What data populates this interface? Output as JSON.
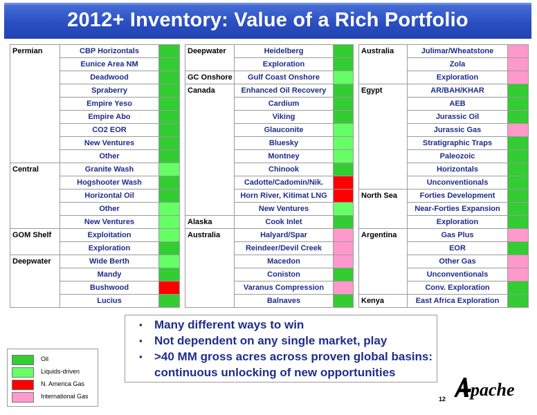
{
  "title": "2012+ Inventory: Value of a Rich Portfolio",
  "colors": {
    "oil": "#33cc33",
    "liquids": "#66ff66",
    "na_gas": "#ff0000",
    "intl_gas": "#ff99cc",
    "banner": "#2b4fc2",
    "text_blue": "#1e2d8c"
  },
  "legend": [
    {
      "key": "oil",
      "label": "Oil"
    },
    {
      "key": "liquids",
      "label": "Liquids-driven"
    },
    {
      "key": "na_gas",
      "label": "N. America Gas"
    },
    {
      "key": "intl_gas",
      "label": "International Gas"
    }
  ],
  "tables": [
    {
      "rows": [
        {
          "region": "Permian",
          "name": "CBP Horizontals",
          "cat": "oil"
        },
        {
          "name": "Eunice Area NM",
          "cat": "oil"
        },
        {
          "name": "Deadwood",
          "cat": "oil"
        },
        {
          "name": "Spraberry",
          "cat": "oil"
        },
        {
          "name": "Empire Yeso",
          "cat": "oil"
        },
        {
          "name": "Empire Abo",
          "cat": "oil"
        },
        {
          "name": "CO2 EOR",
          "cat": "oil"
        },
        {
          "name": "New Ventures",
          "cat": "oil"
        },
        {
          "name": "Other",
          "cat": "oil"
        },
        {
          "region": "Central",
          "name": "Granite Wash",
          "cat": "liquids"
        },
        {
          "name": "Hogshooter Wash",
          "cat": "oil"
        },
        {
          "name": "Horizontal Oil",
          "cat": "oil"
        },
        {
          "name": "Other",
          "cat": "liquids"
        },
        {
          "name": "New Ventures",
          "cat": "liquids"
        },
        {
          "region": "GOM Shelf",
          "name": "Exploitation",
          "cat": "liquids"
        },
        {
          "name": "Exploration",
          "cat": "oil"
        },
        {
          "region": "Deepwater",
          "name": "Wide Berth",
          "cat": "liquids"
        },
        {
          "name": "Mandy",
          "cat": "oil"
        },
        {
          "name": "Bushwood",
          "cat": "na_gas"
        },
        {
          "name": "Lucius",
          "cat": "oil"
        }
      ]
    },
    {
      "rows": [
        {
          "region": "Deepwater",
          "name": "Heidelberg",
          "cat": "oil"
        },
        {
          "name": "Exploration",
          "cat": "oil"
        },
        {
          "region": "GC Onshore",
          "name": "Gulf Coast Onshore",
          "cat": "liquids"
        },
        {
          "region": "Canada",
          "name": "Enhanced Oil Recovery",
          "cat": "oil"
        },
        {
          "name": "Cardium",
          "cat": "oil"
        },
        {
          "name": "Viking",
          "cat": "oil"
        },
        {
          "name": "Glauconite",
          "cat": "liquids"
        },
        {
          "name": "Bluesky",
          "cat": "liquids"
        },
        {
          "name": "Montney",
          "cat": "liquids"
        },
        {
          "name": "Chinook",
          "cat": "oil"
        },
        {
          "name": "Cadotte/Cadomin/Nik.",
          "cat": "na_gas"
        },
        {
          "name": "Horn River, Kitimat LNG",
          "cat": "na_gas"
        },
        {
          "name": "New Ventures",
          "cat": "liquids"
        },
        {
          "region": "Alaska",
          "name": "Cook Inlet",
          "cat": "oil"
        },
        {
          "region": "Australia",
          "name": "Halyard/Spar",
          "cat": "intl_gas"
        },
        {
          "name": "Reindeer/Devil Creek",
          "cat": "intl_gas"
        },
        {
          "name": "Macedon",
          "cat": "intl_gas"
        },
        {
          "name": "Coniston",
          "cat": "oil"
        },
        {
          "name": "Varanus Compression",
          "cat": "intl_gas"
        },
        {
          "name": "Balnaves",
          "cat": "oil"
        }
      ]
    },
    {
      "rows": [
        {
          "region": "Australia",
          "name": "Julimar/Wheatstone",
          "cat": "intl_gas"
        },
        {
          "name": "Zola",
          "cat": "intl_gas"
        },
        {
          "name": "Exploration",
          "cat": "intl_gas"
        },
        {
          "region": "Egypt",
          "name": "AR/BAH/KHAR",
          "cat": "oil"
        },
        {
          "name": "AEB",
          "cat": "oil"
        },
        {
          "name": "Jurassic Oil",
          "cat": "oil"
        },
        {
          "name": "Jurassic Gas",
          "cat": "intl_gas"
        },
        {
          "name": "Stratigraphic Traps",
          "cat": "oil"
        },
        {
          "name": "Paleozoic",
          "cat": "oil"
        },
        {
          "name": "Horizontals",
          "cat": "oil"
        },
        {
          "name": "Unconventionals",
          "cat": "oil"
        },
        {
          "region": "North Sea",
          "name": "Forties Development",
          "cat": "oil"
        },
        {
          "name": "Near-Forties Expansion",
          "cat": "oil"
        },
        {
          "name": "Exploration",
          "cat": "oil"
        },
        {
          "region": "Argentina",
          "name": "Gas Plus",
          "cat": "intl_gas"
        },
        {
          "name": "EOR",
          "cat": "oil"
        },
        {
          "name": "Other Gas",
          "cat": "intl_gas"
        },
        {
          "name": "Unconventionals",
          "cat": "intl_gas"
        },
        {
          "name": "Conv. Exploration",
          "cat": "oil"
        },
        {
          "region": "Kenya",
          "name": "East Africa Exploration",
          "cat": "oil"
        }
      ]
    }
  ],
  "bullets": [
    "Many different ways to win",
    "Not dependent on any single market, play",
    ">40 MM gross acres across proven global basins:",
    "continuous unlocking of new opportunities"
  ],
  "bullet_glyph": "▪",
  "page_number": "12",
  "logo_text": "Apache"
}
